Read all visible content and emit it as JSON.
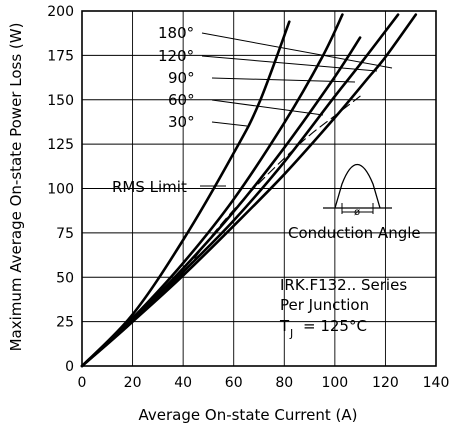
{
  "chart_data": {
    "type": "line",
    "xlabel": "Average On-state Current (A)",
    "ylabel": "Maximum Average On-state Power Loss (W)",
    "xlim": [
      0,
      140
    ],
    "ylim": [
      0,
      200
    ],
    "x_ticks": [
      "0",
      "20",
      "40",
      "60",
      "80",
      "100",
      "120",
      "140"
    ],
    "y_ticks": [
      "0",
      "25",
      "50",
      "75",
      "100",
      "125",
      "150",
      "175",
      "200"
    ],
    "grid": true,
    "series": [
      {
        "name": "180°",
        "x": [
          0,
          20,
          40,
          60,
          80,
          100,
          113,
          120,
          132
        ],
        "y": [
          0,
          25,
          51,
          79,
          108,
          140,
          162,
          174,
          198
        ]
      },
      {
        "name": "120°",
        "x": [
          0,
          20,
          40,
          60,
          80,
          100,
          110,
          125
        ],
        "y": [
          0,
          25,
          53,
          82,
          115,
          152,
          170,
          198
        ]
      },
      {
        "name": "90°",
        "x": [
          0,
          20,
          40,
          60,
          80,
          100,
          110
        ],
        "y": [
          0,
          26,
          55,
          87,
          123,
          163,
          185
        ]
      },
      {
        "name": "60°",
        "x": [
          0,
          20,
          40,
          60,
          80,
          95,
          103
        ],
        "y": [
          0,
          27,
          58,
          94,
          137,
          174,
          198
        ]
      },
      {
        "name": "30°",
        "x": [
          0,
          20,
          40,
          60,
          70,
          82
        ],
        "y": [
          0,
          29,
          71,
          120,
          148,
          194
        ]
      },
      {
        "name": "RMS Limit",
        "x": [
          38,
          50,
          60,
          70,
          80,
          90,
          100,
          110
        ],
        "y": [
          48,
          71,
          88,
          103,
          117,
          130,
          141,
          152
        ]
      }
    ],
    "curve_labels": [
      "180°",
      "120°",
      "90°",
      "60°",
      "30°"
    ],
    "rms_label": "RMS Limit",
    "conduction_label": "Conduction Angle",
    "conduction_symbol": "ø",
    "info_lines": [
      "IRK.F132.. Series",
      "Per Junction"
    ],
    "tj_label": "T",
    "tj_sub": "J",
    "tj_value": "= 125°C"
  }
}
